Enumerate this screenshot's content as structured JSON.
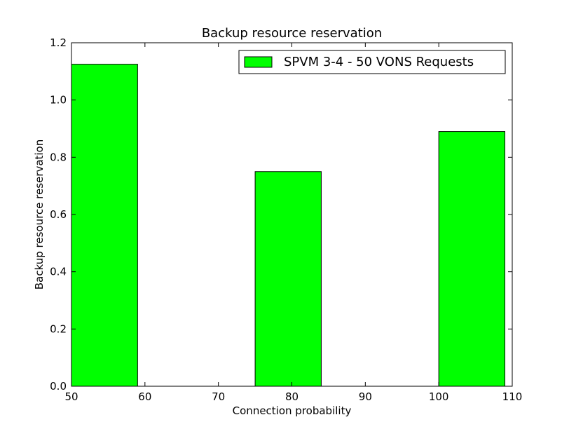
{
  "chart_data": {
    "type": "bar",
    "title": "Backup resource reservation",
    "xlabel": "Connection probability",
    "ylabel": "Backup resource reservation",
    "xlim": [
      50,
      110
    ],
    "ylim": [
      0,
      1.2
    ],
    "x_ticks": [
      "50",
      "60",
      "70",
      "80",
      "90",
      "100",
      "110"
    ],
    "y_ticks": [
      "0.0",
      "0.2",
      "0.4",
      "0.6",
      "0.8",
      "1.0",
      "1.2"
    ],
    "bar_width": 9,
    "series": [
      {
        "name": "SPVM 3-4 - 50 VONS Requests",
        "color": "#00ff00",
        "bars": [
          {
            "x_start": 50,
            "value": 1.125
          },
          {
            "x_start": 75,
            "value": 0.75
          },
          {
            "x_start": 100,
            "value": 0.89
          }
        ]
      }
    ],
    "grid": false,
    "legend": "top-right"
  }
}
